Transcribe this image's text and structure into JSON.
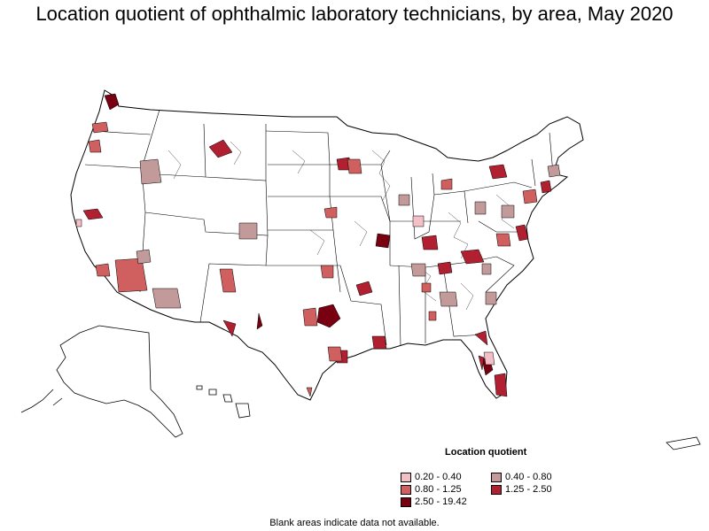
{
  "title": "Location quotient of ophthalmic laboratory technicians, by area, May 2020",
  "legend": {
    "title": "Location quotient",
    "items": [
      {
        "label": "0.20 - 0.40",
        "color": "#f4c0c8"
      },
      {
        "label": "0.40 - 0.80",
        "color": "#c29a9a"
      },
      {
        "label": "0.80 - 1.25",
        "color": "#d06060"
      },
      {
        "label": "1.25 - 2.50",
        "color": "#b02030"
      },
      {
        "label": "2.50 - 19.42",
        "color": "#780010"
      }
    ]
  },
  "footnote": "Blank areas indicate data not available."
}
